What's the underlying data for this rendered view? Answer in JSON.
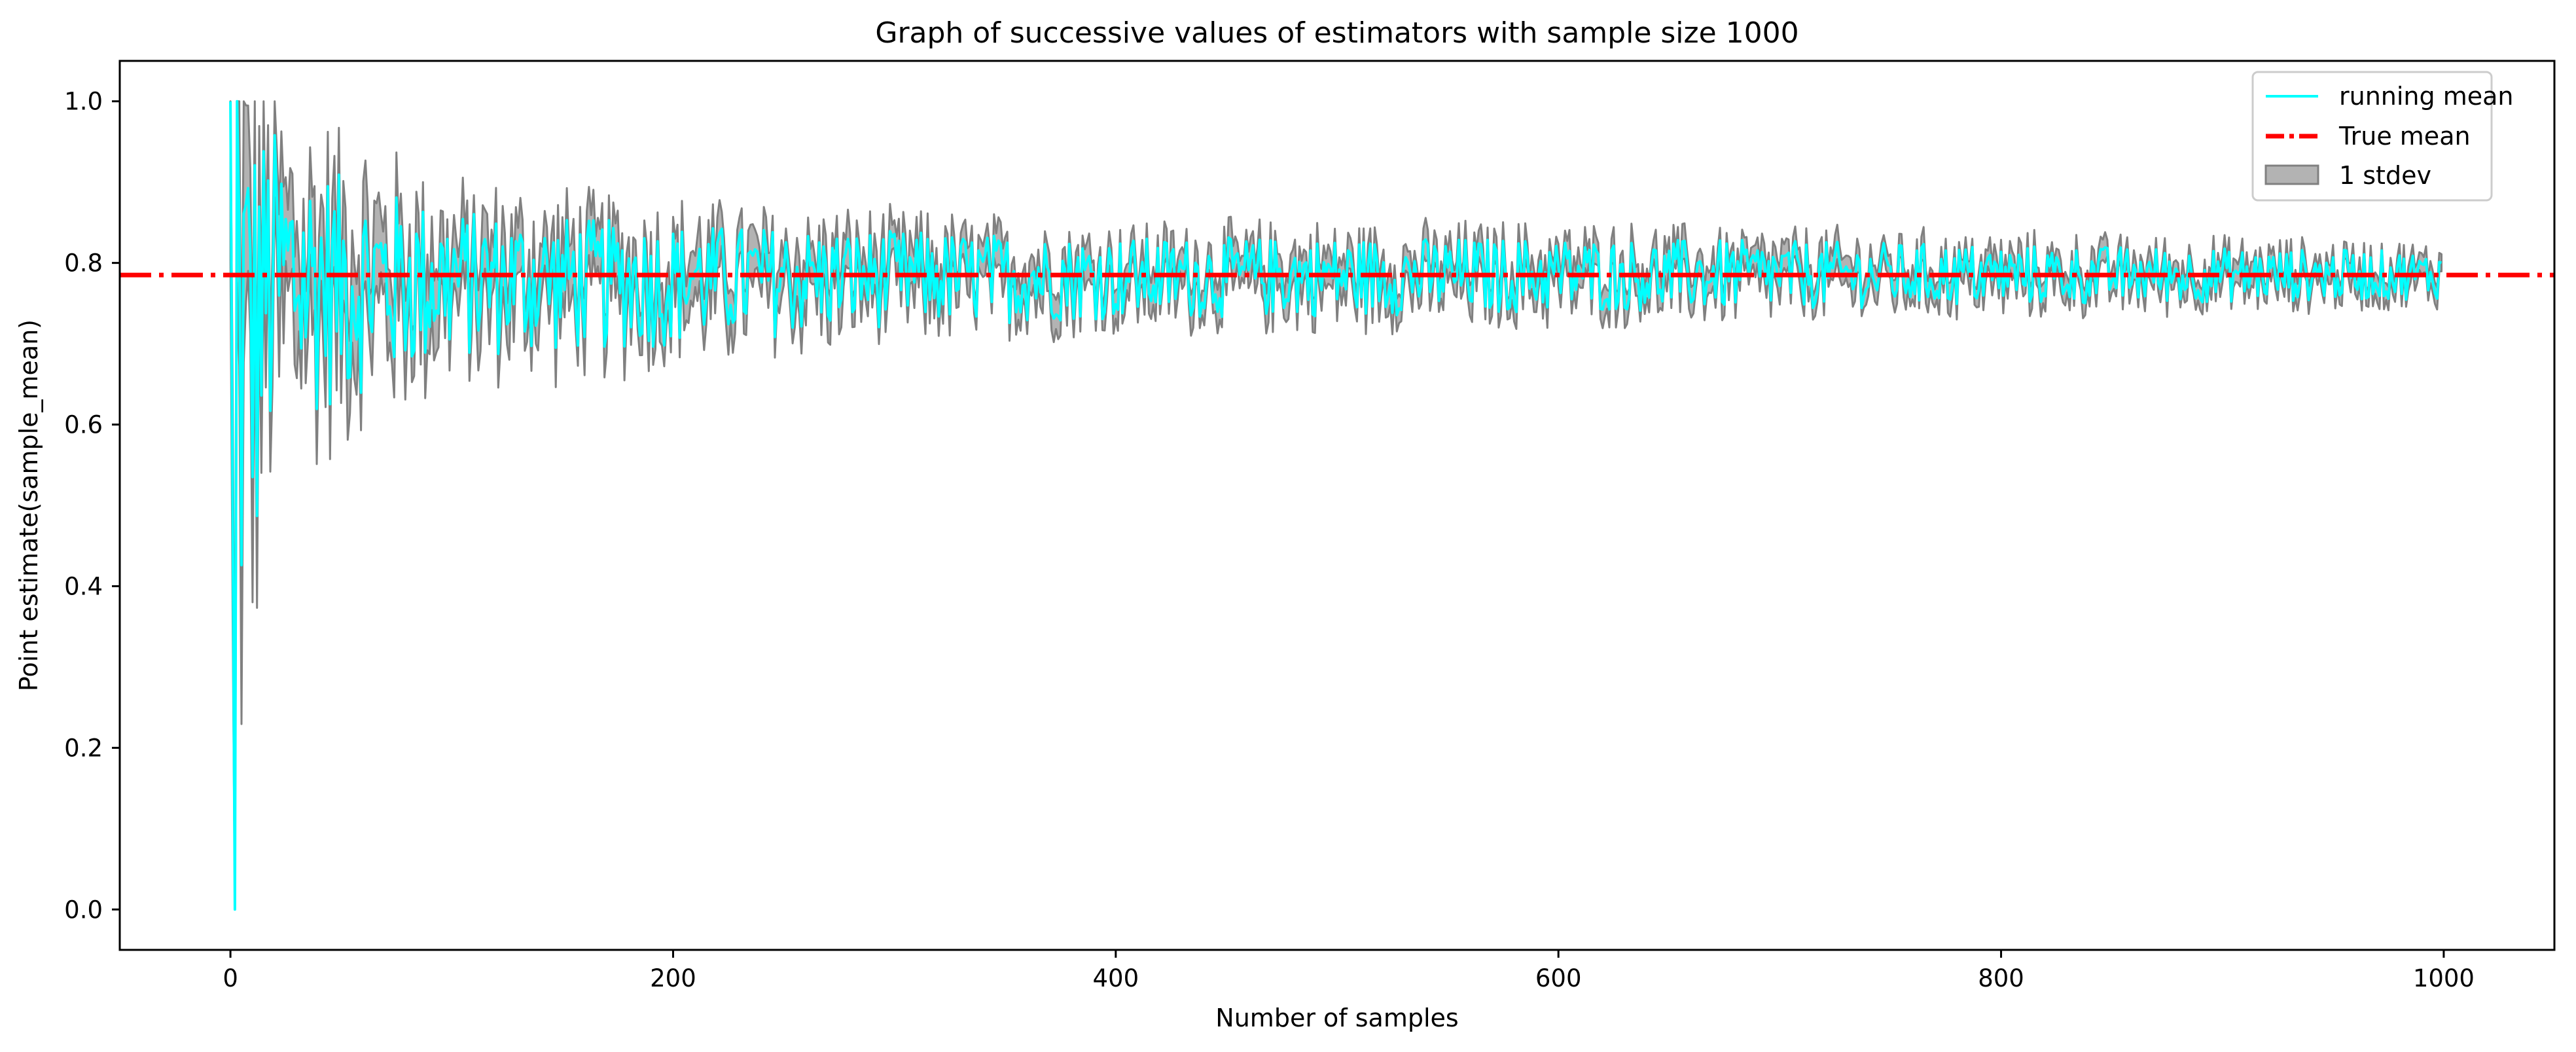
{
  "chart_data": {
    "type": "line",
    "title": "Graph of successive values of estimators with sample size 1000",
    "xlabel": "Number of samples",
    "ylabel": "Point estimate(sample_mean)",
    "xlim": [
      -50,
      1050
    ],
    "ylim": [
      -0.05,
      1.05
    ],
    "x_ticks": [
      0,
      200,
      400,
      600,
      800,
      1000
    ],
    "y_ticks": [
      0.0,
      0.2,
      0.4,
      0.6,
      0.8,
      1.0
    ],
    "x_tick_labels": [
      "0",
      "200",
      "400",
      "600",
      "800",
      "1000"
    ],
    "y_tick_labels": [
      "0.0",
      "0.2",
      "0.4",
      "0.6",
      "0.8",
      "1.0"
    ],
    "true_mean": 0.785,
    "sample_count": 1000,
    "legend_position": "top-right",
    "grid": false,
    "series": [
      {
        "name": "running mean",
        "kind": "line",
        "color": "#00ffff"
      },
      {
        "name": "True mean",
        "kind": "dashdot-line",
        "color": "#ff0000"
      },
      {
        "name": "1 stdev",
        "kind": "band",
        "color": "#808080"
      }
    ],
    "envelope": [
      {
        "x": 0,
        "low": 0.0,
        "high": 1.0
      },
      {
        "x": 10,
        "low": 0.28,
        "high": 1.0
      },
      {
        "x": 20,
        "low": 0.55,
        "high": 1.0
      },
      {
        "x": 50,
        "low": 0.6,
        "high": 0.93
      },
      {
        "x": 100,
        "low": 0.66,
        "high": 0.88
      },
      {
        "x": 200,
        "low": 0.68,
        "high": 0.86
      },
      {
        "x": 300,
        "low": 0.71,
        "high": 0.85
      },
      {
        "x": 400,
        "low": 0.72,
        "high": 0.84
      },
      {
        "x": 600,
        "low": 0.73,
        "high": 0.84
      },
      {
        "x": 800,
        "low": 0.74,
        "high": 0.83
      },
      {
        "x": 1000,
        "low": 0.75,
        "high": 0.82
      }
    ]
  }
}
